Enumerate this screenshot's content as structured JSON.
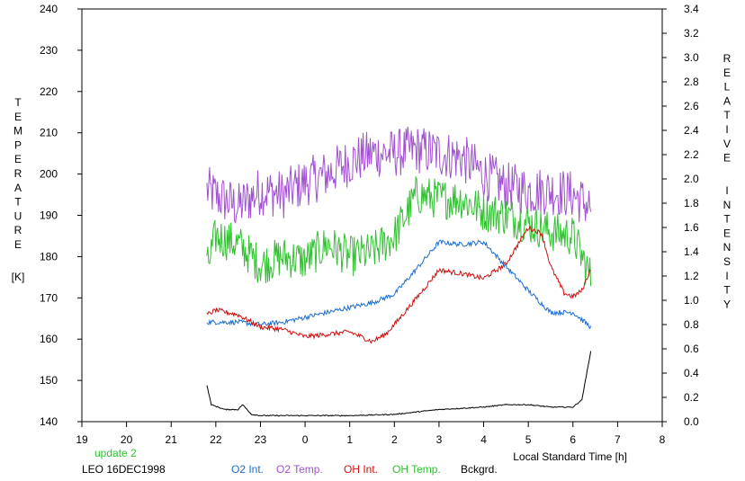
{
  "chart_data": {
    "type": "line",
    "left_axis": {
      "label_letters": [
        "T",
        "E",
        "M",
        "P",
        "E",
        "R",
        "A",
        "T",
        "U",
        "R",
        "E"
      ],
      "unit": "[K]",
      "ylim": [
        140,
        240
      ],
      "ticks": [
        "140",
        "150",
        "160",
        "170",
        "180",
        "190",
        "200",
        "210",
        "220",
        "230",
        "240"
      ]
    },
    "right_axis": {
      "label_word1": [
        "R",
        "E",
        "L",
        "A",
        "T",
        "I",
        "V",
        "E"
      ],
      "label_word2": [
        "I",
        "N",
        "T",
        "E",
        "N",
        "S",
        "I",
        "T",
        "Y"
      ],
      "ylim": [
        0.0,
        3.4
      ],
      "ticks": [
        "0.0",
        "0.2",
        "0.4",
        "0.6",
        "0.8",
        "1.0",
        "1.2",
        "1.4",
        "1.6",
        "1.8",
        "2.0",
        "2.2",
        "2.4",
        "2.6",
        "2.8",
        "3.0",
        "3.2",
        "3.4"
      ]
    },
    "x_axis": {
      "label": "Local Standard Time [h]",
      "ticks": [
        "19",
        "20",
        "21",
        "22",
        "23",
        "0",
        "1",
        "2",
        "3",
        "4",
        "5",
        "6",
        "7",
        "8"
      ],
      "xlim": [
        19,
        32
      ]
    },
    "update_text": "update 2",
    "station_text": "LEO 16DEC1998",
    "legend": [
      {
        "name": "O2 Int.",
        "color": "#1e6fd0"
      },
      {
        "name": "O2 Temp.",
        "color": "#a050d0"
      },
      {
        "name": "OH Int.",
        "color": "#d01010"
      },
      {
        "name": "OH Temp.",
        "color": "#30c030"
      },
      {
        "name": "Bckgrd.",
        "color": "#000000"
      }
    ],
    "series": [
      {
        "name": "O2 Temp.",
        "axis": "left",
        "color": "#a050d0",
        "noise": 6,
        "points": [
          [
            21.8,
            196
          ],
          [
            22.5,
            192
          ],
          [
            23,
            196
          ],
          [
            23.5,
            195
          ],
          [
            24,
            198
          ],
          [
            24.5,
            200
          ],
          [
            25,
            203
          ],
          [
            25.5,
            205
          ],
          [
            26,
            205
          ],
          [
            26.5,
            206
          ],
          [
            27,
            205
          ],
          [
            27.5,
            204
          ],
          [
            28,
            200
          ],
          [
            28.5,
            197
          ],
          [
            29,
            196
          ],
          [
            29.5,
            196
          ],
          [
            30,
            195
          ],
          [
            30.4,
            192
          ]
        ]
      },
      {
        "name": "OH Temp.",
        "axis": "left",
        "color": "#30c030",
        "noise": 5,
        "points": [
          [
            21.8,
            177
          ],
          [
            22,
            185
          ],
          [
            22.5,
            183
          ],
          [
            23,
            178
          ],
          [
            23.5,
            180
          ],
          [
            24,
            179
          ],
          [
            24.5,
            183
          ],
          [
            25,
            180
          ],
          [
            25.5,
            181
          ],
          [
            26,
            185
          ],
          [
            26.5,
            195
          ],
          [
            27,
            194
          ],
          [
            27.5,
            194
          ],
          [
            28,
            191
          ],
          [
            28.5,
            190
          ],
          [
            29,
            188
          ],
          [
            29.5,
            186
          ],
          [
            30,
            185
          ],
          [
            30.4,
            175
          ]
        ]
      },
      {
        "name": "O2 Int.",
        "axis": "right",
        "color": "#1e6fd0",
        "noise": 0.02,
        "points": [
          [
            21.8,
            0.82
          ],
          [
            22.5,
            0.82
          ],
          [
            23,
            0.8
          ],
          [
            23.5,
            0.82
          ],
          [
            24,
            0.86
          ],
          [
            24.5,
            0.9
          ],
          [
            25,
            0.94
          ],
          [
            25.5,
            0.98
          ],
          [
            26,
            1.05
          ],
          [
            26.5,
            1.26
          ],
          [
            27,
            1.48
          ],
          [
            27.5,
            1.46
          ],
          [
            28,
            1.48
          ],
          [
            28.5,
            1.28
          ],
          [
            29,
            1.08
          ],
          [
            29.5,
            0.9
          ],
          [
            30,
            0.9
          ],
          [
            30.4,
            0.78
          ]
        ]
      },
      {
        "name": "OH Int.",
        "axis": "right",
        "color": "#d01010",
        "noise": 0.02,
        "points": [
          [
            21.8,
            0.88
          ],
          [
            22,
            0.92
          ],
          [
            22.5,
            0.88
          ],
          [
            23,
            0.78
          ],
          [
            23.5,
            0.76
          ],
          [
            24,
            0.7
          ],
          [
            24.5,
            0.72
          ],
          [
            25,
            0.74
          ],
          [
            25.5,
            0.66
          ],
          [
            25.8,
            0.72
          ],
          [
            26,
            0.8
          ],
          [
            26.5,
            1.02
          ],
          [
            27,
            1.25
          ],
          [
            27.5,
            1.22
          ],
          [
            28,
            1.18
          ],
          [
            28.5,
            1.3
          ],
          [
            29,
            1.6
          ],
          [
            29.3,
            1.55
          ],
          [
            29.5,
            1.28
          ],
          [
            29.8,
            1.06
          ],
          [
            30,
            1.03
          ],
          [
            30.2,
            1.08
          ],
          [
            30.4,
            1.26
          ]
        ]
      },
      {
        "name": "Bckgrd.",
        "axis": "right",
        "color": "#000000",
        "noise": 0.004,
        "points": [
          [
            21.8,
            0.3
          ],
          [
            21.9,
            0.14
          ],
          [
            22.2,
            0.1
          ],
          [
            22.5,
            0.1
          ],
          [
            22.6,
            0.14
          ],
          [
            22.8,
            0.06
          ],
          [
            23,
            0.05
          ],
          [
            24,
            0.05
          ],
          [
            25,
            0.05
          ],
          [
            26,
            0.06
          ],
          [
            26.5,
            0.08
          ],
          [
            27,
            0.1
          ],
          [
            27.5,
            0.11
          ],
          [
            28,
            0.12
          ],
          [
            28.5,
            0.14
          ],
          [
            29,
            0.14
          ],
          [
            29.5,
            0.12
          ],
          [
            30,
            0.12
          ],
          [
            30.2,
            0.18
          ],
          [
            30.4,
            0.58
          ]
        ]
      }
    ]
  }
}
